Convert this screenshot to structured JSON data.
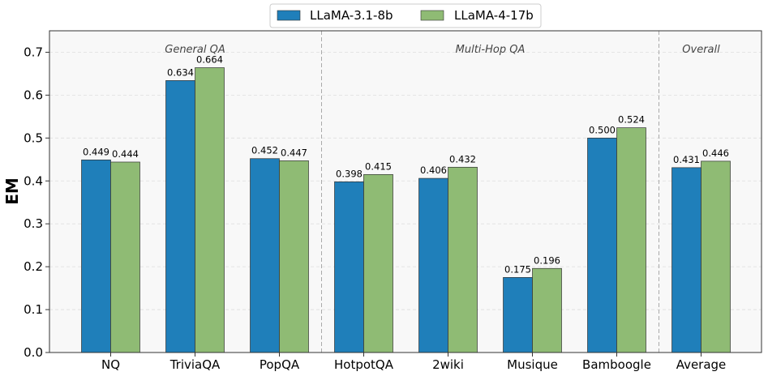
{
  "chart_data": {
    "type": "bar",
    "title": "",
    "xlabel": "",
    "ylabel": "EM",
    "ylim": [
      0,
      0.75
    ],
    "yticks": [
      "0.0",
      "0.1",
      "0.2",
      "0.3",
      "0.4",
      "0.5",
      "0.6",
      "0.7"
    ],
    "grid": true,
    "legend_position": "top-center",
    "categories": [
      "NQ",
      "TriviaQA",
      "PopQA",
      "HotpotQA",
      "2wiki",
      "Musique",
      "Bamboogle",
      "Average"
    ],
    "series": [
      {
        "name": "LLaMA-3.1-8b",
        "color": "#1f7fba",
        "values": [
          0.449,
          0.634,
          0.452,
          0.398,
          0.406,
          0.175,
          0.5,
          0.431
        ],
        "labels": [
          "0.449",
          "0.634",
          "0.452",
          "0.398",
          "0.406",
          "0.175",
          "0.500",
          "0.431"
        ]
      },
      {
        "name": "LLaMA-4-17b",
        "color": "#8fbb74",
        "values": [
          0.444,
          0.664,
          0.447,
          0.415,
          0.432,
          0.196,
          0.524,
          0.446
        ],
        "labels": [
          "0.444",
          "0.664",
          "0.447",
          "0.415",
          "0.432",
          "0.196",
          "0.524",
          "0.446"
        ]
      }
    ],
    "sections": [
      {
        "label": "General QA",
        "start": 0,
        "end": 2
      },
      {
        "label": "Multi-Hop QA",
        "start": 3,
        "end": 6
      },
      {
        "label": "Overall",
        "start": 7,
        "end": 7
      }
    ]
  }
}
